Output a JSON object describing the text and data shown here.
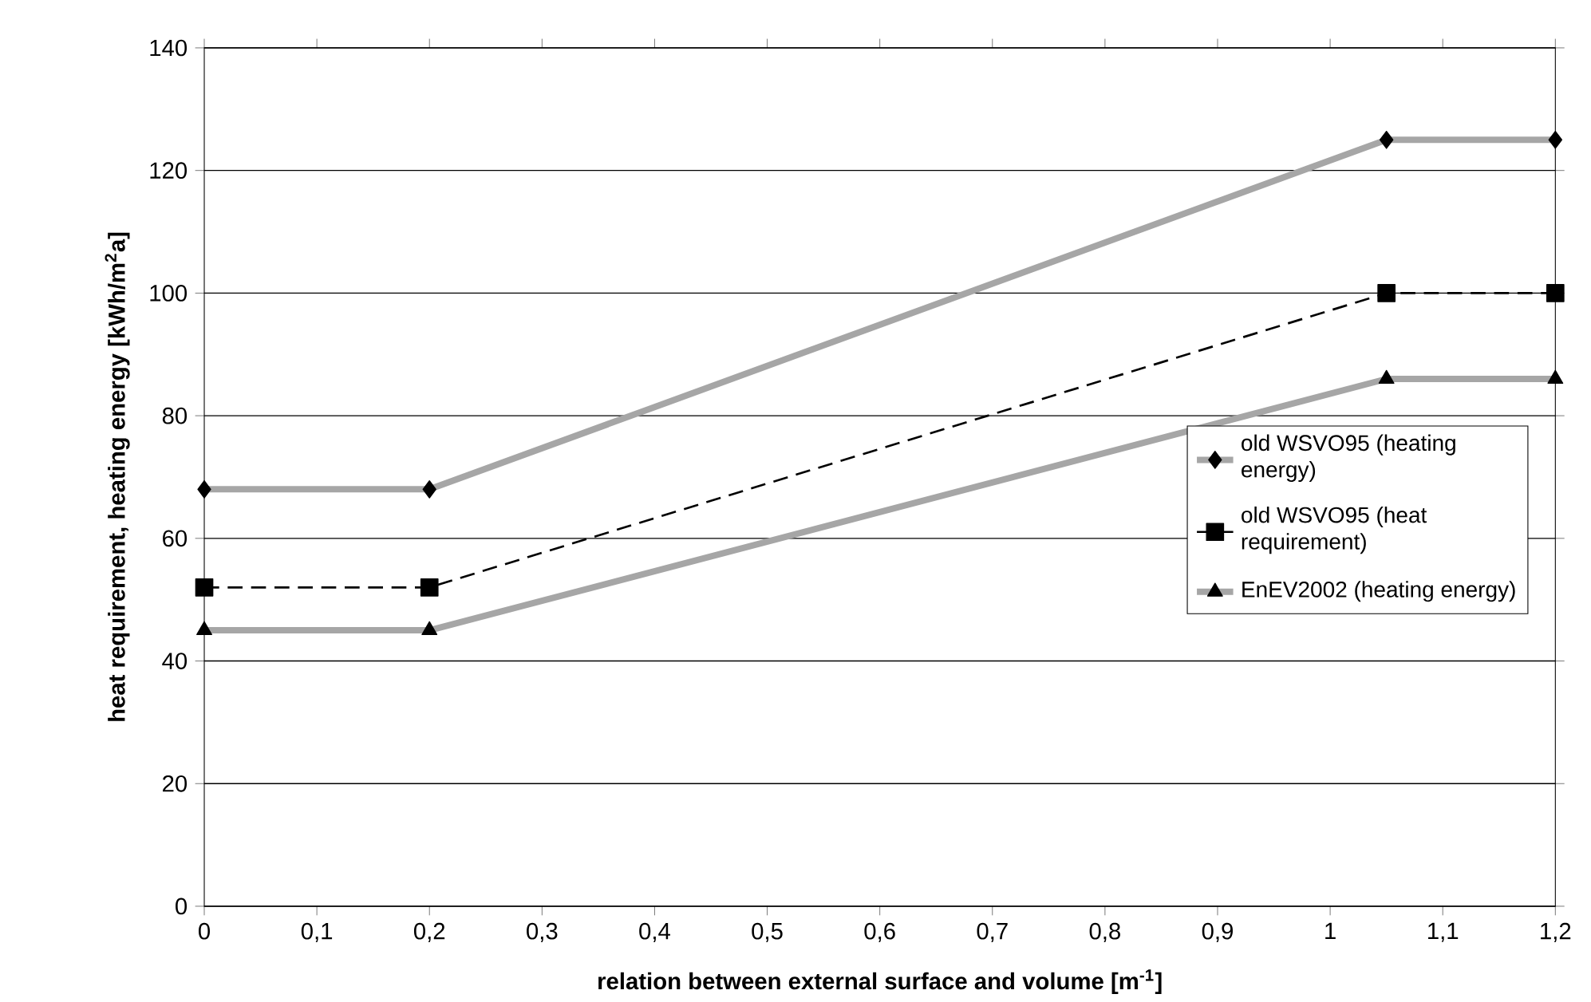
{
  "chart_data": {
    "type": "line",
    "xlabel": "relation between external surface and volume [m$^{-1}$]",
    "ylabel": "heat requirement, heating energy [kWh/m$^{2}$a]",
    "x": [
      0,
      0.2,
      1.05,
      1.2
    ],
    "series": [
      {
        "name": "old WSVO95 (heating energy)",
        "color": "#a6a6a6",
        "values": [
          68,
          68,
          125,
          125
        ],
        "marker": "diamond",
        "line_style": "solid"
      },
      {
        "name": "old WSVO95 (heat requirement)",
        "color": "#000000",
        "values": [
          52,
          52,
          100,
          100
        ],
        "marker": "square",
        "line_style": "dashed"
      },
      {
        "name": "EnEV2002 (heating energy)",
        "color": "#a6a6a6",
        "values": [
          45,
          45,
          86,
          86
        ],
        "marker": "triangle",
        "line_style": "solid"
      }
    ],
    "xlim": [
      0,
      1.2
    ],
    "xticks": [
      0,
      {
        "value": 0.1,
        "label": "0,1"
      },
      {
        "value": 0.2,
        "label": "0,2"
      },
      {
        "value": 0.3,
        "label": "0,3"
      },
      {
        "value": 0.4,
        "label": "0,4"
      },
      {
        "value": 0.5,
        "label": "0,5"
      },
      {
        "value": 0.6,
        "label": "0,6"
      },
      {
        "value": 0.7,
        "label": "0,7"
      },
      {
        "value": 0.8,
        "label": "0,8"
      },
      {
        "value": 0.9,
        "label": "0,9"
      },
      1,
      {
        "value": 1.1,
        "label": "1,1"
      },
      {
        "value": 1.2,
        "label": "1,2"
      }
    ],
    "ylim": [
      0,
      140
    ],
    "yticks": [
      0,
      20,
      40,
      60,
      80,
      100,
      120,
      140
    ],
    "grid": "y",
    "legend": "right"
  }
}
